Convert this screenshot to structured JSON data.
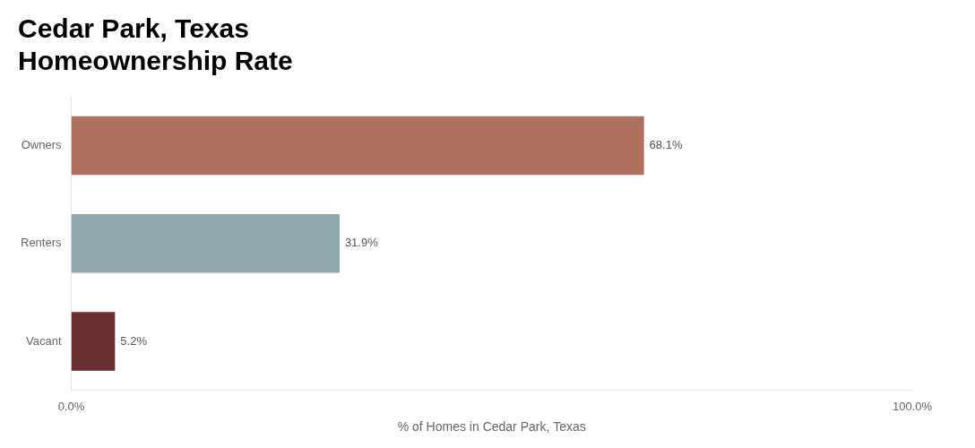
{
  "chart_data": {
    "type": "bar",
    "orientation": "horizontal",
    "title": "Cedar Park, Texas\nHomeownership Rate",
    "categories": [
      "Vacant",
      "Renters",
      "Owners"
    ],
    "values": [
      5.2,
      31.9,
      68.1
    ],
    "value_labels": [
      "5.2%",
      "31.9%",
      "68.1%"
    ],
    "data_labels": true,
    "colors": [
      "#6b3030",
      "#8fa8b0",
      "#b07060"
    ],
    "xlabel": "% of Homes in Cedar Park, Texas",
    "xlim": [
      0,
      100
    ],
    "xticks": [
      {
        "value": 0,
        "label": "0.0%"
      },
      {
        "value": 100,
        "label": "100.0%"
      }
    ],
    "grid": false
  }
}
